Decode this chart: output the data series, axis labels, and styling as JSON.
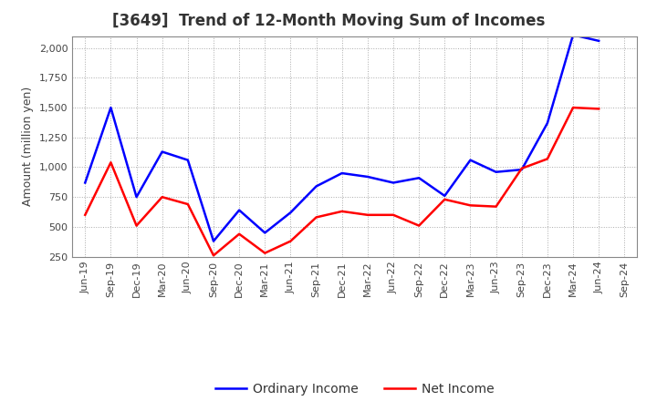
{
  "title": "[3649]  Trend of 12-Month Moving Sum of Incomes",
  "ylabel": "Amount (million yen)",
  "x_labels": [
    "Jun-19",
    "Sep-19",
    "Dec-19",
    "Mar-20",
    "Jun-20",
    "Sep-20",
    "Dec-20",
    "Mar-21",
    "Jun-21",
    "Sep-21",
    "Dec-21",
    "Mar-22",
    "Jun-22",
    "Sep-22",
    "Dec-22",
    "Mar-23",
    "Jun-23",
    "Sep-23",
    "Dec-23",
    "Mar-24",
    "Jun-24",
    "Sep-24"
  ],
  "ordinary_income": [
    870,
    1500,
    750,
    1130,
    1060,
    380,
    640,
    450,
    620,
    840,
    950,
    920,
    870,
    910,
    760,
    1060,
    960,
    980,
    1370,
    2110,
    2060,
    null
  ],
  "net_income": [
    600,
    1040,
    510,
    750,
    690,
    260,
    440,
    280,
    380,
    580,
    630,
    600,
    600,
    510,
    730,
    680,
    670,
    990,
    1070,
    1500,
    1490,
    null
  ],
  "ordinary_income_color": "#0000FF",
  "net_income_color": "#FF0000",
  "ylim": [
    250,
    2100
  ],
  "yticks": [
    250,
    500,
    750,
    1000,
    1250,
    1500,
    1750,
    2000
  ],
  "background_color": "#FFFFFF",
  "grid_color": "#AAAAAA",
  "line_width": 1.8,
  "title_fontsize": 12,
  "ylabel_fontsize": 9,
  "tick_fontsize": 8,
  "legend_fontsize": 10
}
